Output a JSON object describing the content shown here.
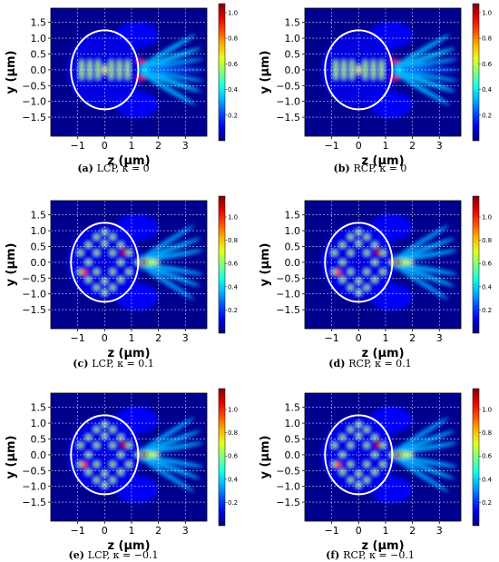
{
  "chart_data": [
    {
      "type": "heatmap",
      "caption": {
        "label": "(a)",
        "text": "LCP, κ = 0"
      },
      "xlabel": "z (μm)",
      "ylabel": "y (μm)",
      "xlim": [
        -2.0,
        3.8
      ],
      "ylim": [
        -2.1,
        1.95
      ],
      "xticks": [
        -1,
        0,
        1,
        2,
        3
      ],
      "yticks": [
        1.5,
        1.0,
        0.5,
        0.0,
        -0.5,
        -1.0,
        -1.5
      ],
      "ytick_labels": [
        "1.5",
        "1.0",
        "0.5",
        "0.0",
        "−0.5",
        "−1.0",
        "−1.5"
      ],
      "colorbar": {
        "ticks": [
          0.2,
          0.4,
          0.6,
          0.8,
          1.0
        ],
        "range": [
          0,
          1.07
        ],
        "colormap": "jet"
      },
      "circle_radius": 1.25,
      "pattern": "kappa0"
    },
    {
      "type": "heatmap",
      "caption": {
        "label": "(b)",
        "text": "RCP, κ = 0"
      },
      "xlabel": "z (μm)",
      "ylabel": "y (μm)",
      "xlim": [
        -2.0,
        3.8
      ],
      "ylim": [
        -2.1,
        1.95
      ],
      "xticks": [
        -1,
        0,
        1,
        2,
        3
      ],
      "yticks": [
        1.5,
        1.0,
        0.5,
        0.0,
        -0.5,
        -1.0,
        -1.5
      ],
      "ytick_labels": [
        "1.5",
        "1.0",
        "0.5",
        "0.0",
        "−0.5",
        "−1.0",
        "−1.5"
      ],
      "colorbar": {
        "ticks": [
          0.2,
          0.4,
          0.6,
          0.8,
          1.0
        ],
        "range": [
          0,
          1.07
        ],
        "colormap": "jet"
      },
      "circle_radius": 1.25,
      "pattern": "kappa0"
    },
    {
      "type": "heatmap",
      "caption": {
        "label": "(c)",
        "text": "LCP, κ = 0.1"
      },
      "xlabel": "z (μm)",
      "ylabel": "y (μm)",
      "xlim": [
        -2.0,
        3.8
      ],
      "ylim": [
        -2.1,
        1.95
      ],
      "xticks": [
        -1,
        0,
        1,
        2,
        3
      ],
      "yticks": [
        1.5,
        1.0,
        0.5,
        0.0,
        -0.5,
        -1.0,
        -1.5
      ],
      "ytick_labels": [
        "1.5",
        "1.0",
        "0.5",
        "0.0",
        "−0.5",
        "−1.0",
        "−1.5"
      ],
      "colorbar": {
        "ticks": [
          0.2,
          0.4,
          0.6,
          0.8,
          1.0
        ],
        "range": [
          0,
          1.18
        ],
        "colormap": "jet"
      },
      "circle_radius": 1.25,
      "pattern": "kappa"
    },
    {
      "type": "heatmap",
      "caption": {
        "label": "(d)",
        "text": "RCP, κ = 0.1"
      },
      "xlabel": "z (μm)",
      "ylabel": "y (μm)",
      "xlim": [
        -2.0,
        3.8
      ],
      "ylim": [
        -2.1,
        1.95
      ],
      "xticks": [
        -1,
        0,
        1,
        2,
        3
      ],
      "yticks": [
        1.5,
        1.0,
        0.5,
        0.0,
        -0.5,
        -1.0,
        -1.5
      ],
      "ytick_labels": [
        "1.5",
        "1.0",
        "0.5",
        "0.0",
        "−0.5",
        "−1.0",
        "−1.5"
      ],
      "colorbar": {
        "ticks": [
          0.2,
          0.4,
          0.6,
          0.8,
          1.0
        ],
        "range": [
          0,
          1.18
        ],
        "colormap": "jet"
      },
      "circle_radius": 1.25,
      "pattern": "kappa"
    },
    {
      "type": "heatmap",
      "caption": {
        "label": "(e)",
        "text": "LCP, κ = −0.1"
      },
      "xlabel": "z (μm)",
      "ylabel": "y (μm)",
      "xlim": [
        -2.0,
        3.8
      ],
      "ylim": [
        -2.1,
        1.95
      ],
      "xticks": [
        -1,
        0,
        1,
        2,
        3
      ],
      "yticks": [
        1.5,
        1.0,
        0.5,
        0.0,
        -0.5,
        -1.0,
        -1.5
      ],
      "ytick_labels": [
        "1.5",
        "1.0",
        "0.5",
        "0.0",
        "−0.5",
        "−1.0",
        "−1.5"
      ],
      "colorbar": {
        "ticks": [
          0.2,
          0.4,
          0.6,
          0.8,
          1.0
        ],
        "range": [
          0,
          1.18
        ],
        "colormap": "jet"
      },
      "circle_radius": 1.25,
      "pattern": "kappa"
    },
    {
      "type": "heatmap",
      "caption": {
        "label": "(f)",
        "text": "RCP, κ = −0.1"
      },
      "xlabel": "z (μm)",
      "ylabel": "y (μm)",
      "xlim": [
        -2.0,
        3.8
      ],
      "ylim": [
        -2.1,
        1.95
      ],
      "xticks": [
        -1,
        0,
        1,
        2,
        3
      ],
      "yticks": [
        1.5,
        1.0,
        0.5,
        0.0,
        -0.5,
        -1.0,
        -1.5
      ],
      "ytick_labels": [
        "1.5",
        "1.0",
        "0.5",
        "0.0",
        "−0.5",
        "−1.0",
        "−1.5"
      ],
      "colorbar": {
        "ticks": [
          0.2,
          0.4,
          0.6,
          0.8,
          1.0
        ],
        "range": [
          0,
          1.18
        ],
        "colormap": "jet"
      },
      "circle_radius": 1.25,
      "pattern": "kappa"
    }
  ],
  "colors": {
    "field_background": "#00008f",
    "circle": "#ffffff",
    "grid": "#ffffff"
  }
}
